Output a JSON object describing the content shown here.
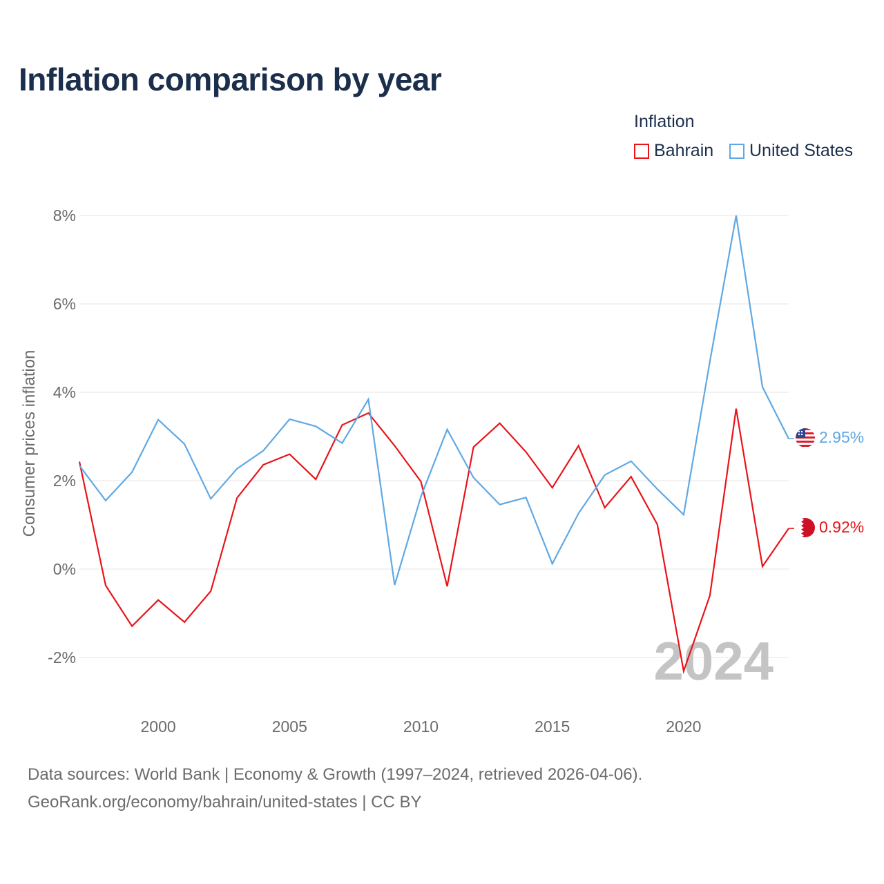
{
  "chart_data": {
    "type": "line",
    "title": "Inflation comparison by year",
    "legend_title": "Inflation",
    "ylabel": "Consumer prices inflation",
    "xlabel": "",
    "ylim": [
      -2.5,
      8.3
    ],
    "xlim": [
      1997,
      2024
    ],
    "y_ticks": [
      -2,
      0,
      2,
      4,
      6,
      8
    ],
    "y_tick_labels": [
      "-2%",
      "0%",
      "2%",
      "4%",
      "6%",
      "8%"
    ],
    "x_ticks": [
      2000,
      2005,
      2010,
      2015,
      2020
    ],
    "x_tick_labels": [
      "2000",
      "2005",
      "2010",
      "2015",
      "2020"
    ],
    "year_watermark": "2024",
    "x": [
      1997,
      1998,
      1999,
      2000,
      2001,
      2002,
      2003,
      2004,
      2005,
      2006,
      2007,
      2008,
      2009,
      2010,
      2011,
      2012,
      2013,
      2014,
      2015,
      2016,
      2017,
      2018,
      2019,
      2020,
      2021,
      2022,
      2023,
      2024
    ],
    "series": [
      {
        "name": "Bahrain",
        "color": "#e8141a",
        "end_label": "0.92%",
        "values": [
          2.43,
          -0.37,
          -1.29,
          -0.7,
          -1.2,
          -0.5,
          1.61,
          2.36,
          2.6,
          2.03,
          3.26,
          3.53,
          2.79,
          1.98,
          -0.39,
          2.76,
          3.3,
          2.65,
          1.84,
          2.79,
          1.39,
          2.09,
          1.01,
          -2.31,
          -0.6,
          3.63,
          0.06,
          0.92
        ]
      },
      {
        "name": "United States",
        "color": "#5fa8e4",
        "end_label": "2.95%",
        "values": [
          2.34,
          1.55,
          2.19,
          3.38,
          2.83,
          1.59,
          2.27,
          2.68,
          3.39,
          3.23,
          2.85,
          3.84,
          -0.36,
          1.64,
          3.16,
          2.07,
          1.46,
          1.62,
          0.12,
          1.26,
          2.13,
          2.44,
          1.81,
          1.23,
          4.7,
          8.0,
          4.12,
          2.95
        ]
      }
    ]
  },
  "footer": {
    "source_line": "Data sources: World Bank | Economy & Growth (1997–2024, retrieved 2026-04-06).",
    "credit_line": "GeoRank.org/economy/bahrain/united-states | CC BY"
  }
}
